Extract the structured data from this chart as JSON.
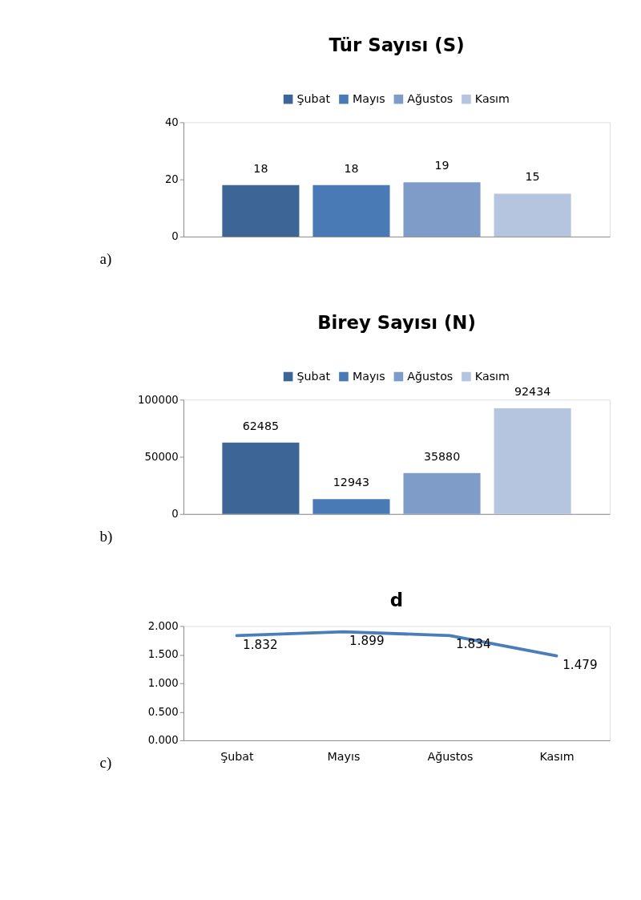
{
  "chart_data": [
    {
      "type": "bar",
      "title": "Tür Sayısı (S)",
      "categories": [
        null
      ],
      "series": [
        {
          "name": "Şubat",
          "color": "#3d6596",
          "values": [
            18
          ]
        },
        {
          "name": "Mayıs",
          "color": "#4a7ab5",
          "values": [
            18
          ]
        },
        {
          "name": "Ağustos",
          "color": "#7f9cc8",
          "values": [
            19
          ]
        },
        {
          "name": "Kasım",
          "color": "#b5c4df",
          "values": [
            15
          ]
        }
      ],
      "ylim": [
        0,
        40
      ],
      "yticks": [
        0,
        20,
        40
      ],
      "data_labels": true,
      "legend": "top",
      "grid": false,
      "tick_labels": "y",
      "annotations": [
        "a)"
      ]
    },
    {
      "type": "bar",
      "title": "Birey Sayısı (N)",
      "categories": [
        null
      ],
      "series": [
        {
          "name": "Şubat",
          "color": "#3d6596",
          "values": [
            62485
          ]
        },
        {
          "name": "Mayıs",
          "color": "#4a7ab5",
          "values": [
            12943
          ]
        },
        {
          "name": "Ağustos",
          "color": "#7f9cc8",
          "values": [
            35880
          ]
        },
        {
          "name": "Kasım",
          "color": "#b5c4df",
          "values": [
            92434
          ]
        }
      ],
      "ylim": [
        0,
        100000
      ],
      "yticks": [
        0,
        50000,
        100000
      ],
      "data_labels": true,
      "legend": "top",
      "grid": false,
      "tick_labels": "y",
      "annotations": [
        "b)"
      ]
    },
    {
      "type": "line",
      "title": "d",
      "categories": [
        "Şubat",
        "Mayıs",
        "Ağustos",
        "Kasım"
      ],
      "series": [
        {
          "color": "#4a7ebb",
          "values": [
            1.832,
            1.899,
            1.834,
            1.479
          ]
        }
      ],
      "ylim": [
        0,
        2
      ],
      "yticks": [
        {
          "value": 0,
          "label": "0.000"
        },
        {
          "value": 0.5,
          "label": "0.500"
        },
        {
          "value": 1,
          "label": "1.000"
        },
        {
          "value": 1.5,
          "label": "1.500"
        },
        {
          "value": 2,
          "label": "2.000"
        }
      ],
      "data_labels": true,
      "grid": false,
      "marker": "none",
      "line_style": "solid",
      "annotations": [
        "c)"
      ]
    }
  ]
}
